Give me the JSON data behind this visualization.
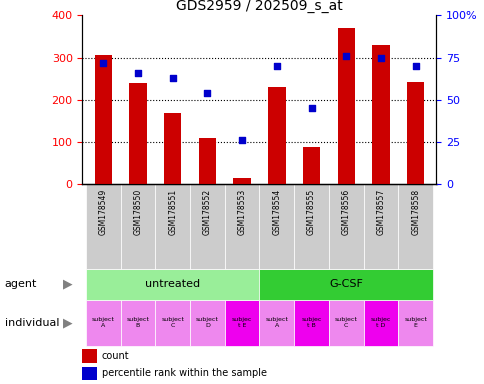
{
  "title": "GDS2959 / 202509_s_at",
  "samples": [
    "GSM178549",
    "GSM178550",
    "GSM178551",
    "GSM178552",
    "GSM178553",
    "GSM178554",
    "GSM178555",
    "GSM178556",
    "GSM178557",
    "GSM178558"
  ],
  "counts": [
    305,
    240,
    170,
    110,
    15,
    230,
    88,
    370,
    330,
    242
  ],
  "percentile_ranks": [
    72,
    66,
    63,
    54,
    26,
    70,
    45,
    76,
    75,
    70
  ],
  "ylim_left": [
    0,
    400
  ],
  "ylim_right": [
    0,
    100
  ],
  "yticks_left": [
    0,
    100,
    200,
    300,
    400
  ],
  "yticks_right": [
    0,
    25,
    50,
    75,
    100
  ],
  "yticklabels_right": [
    "0",
    "25",
    "50",
    "75",
    "100%"
  ],
  "bar_color": "#cc0000",
  "dot_color": "#0000cc",
  "bar_width": 0.5,
  "agent_groups": [
    {
      "label": "untreated",
      "start": 0,
      "end": 5,
      "color": "#99ee99"
    },
    {
      "label": "G-CSF",
      "start": 5,
      "end": 10,
      "color": "#33cc33"
    }
  ],
  "individual_labels": [
    "subject\nA",
    "subject\nB",
    "subject\nC",
    "subject\nD",
    "subjec\nt E",
    "subject\nA",
    "subjec\nt B",
    "subject\nC",
    "subjec\nt D",
    "subject\nE"
  ],
  "individual_highlights": [
    4,
    6,
    8
  ],
  "individual_color_normal": "#ee88ee",
  "individual_color_highlight": "#ee00ee",
  "agent_label": "agent",
  "individual_label": "individual",
  "legend_count": "count",
  "legend_percentile": "percentile rank within the sample",
  "tick_label_bg": "#cccccc",
  "grid_color": "black",
  "grid_linestyle": "dotted"
}
